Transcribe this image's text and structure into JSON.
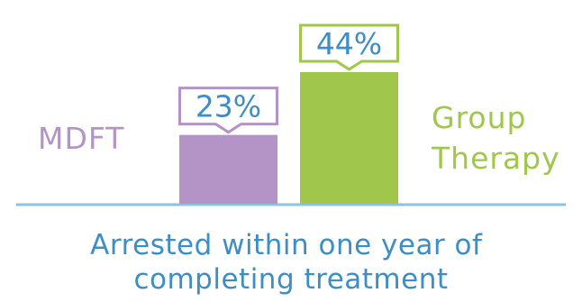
{
  "chart_data": {
    "type": "bar",
    "categories": [
      "MDFT",
      "Group Therapy"
    ],
    "category_label_lines": [
      [
        "MDFT"
      ],
      [
        "Group",
        "Therapy"
      ]
    ],
    "values": [
      23,
      44
    ],
    "data_labels": [
      "23%",
      "44%"
    ],
    "unit": "%",
    "ylim": [
      0,
      50
    ],
    "grid": false,
    "legend": "none",
    "caption_lines": [
      "Arrested within one year of",
      "completing treatment"
    ],
    "colors": {
      "MDFT": "#b494c6",
      "Group Therapy": "#a0c64c",
      "axis": "#8ec3e0",
      "caption": "#3c8ec4"
    }
  }
}
